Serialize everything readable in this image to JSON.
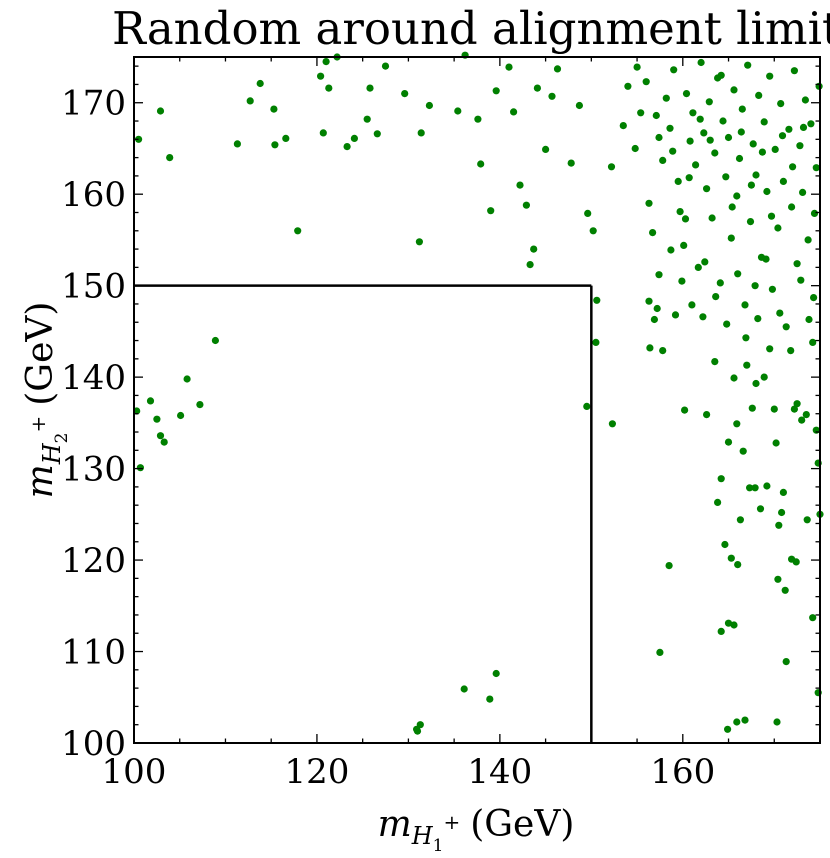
{
  "chart_data": {
    "type": "scatter",
    "title": "Random around alignment limit",
    "xlabel": {
      "symbol": "m",
      "sub": "H",
      "subsub": "1",
      "sup": "+",
      "unit": "(GeV)"
    },
    "ylabel": {
      "symbol": "m",
      "sub": "H",
      "subsub": "2",
      "sup": "+",
      "unit": "(GeV)"
    },
    "xlim": [
      100,
      175
    ],
    "ylim": [
      100,
      175
    ],
    "x_ticks": [
      100,
      120,
      140,
      160
    ],
    "y_ticks": [
      100,
      110,
      120,
      130,
      140,
      150,
      160,
      170
    ],
    "grid": false,
    "marker_color": "#008000",
    "boundary": {
      "x_max": 150,
      "y_max": 150,
      "color": "#000000"
    },
    "points": [
      [
        100.3,
        136.3
      ],
      [
        100.7,
        130.1
      ],
      [
        101.8,
        137.4
      ],
      [
        102.5,
        135.4
      ],
      [
        102.9,
        133.6
      ],
      [
        103.3,
        132.9
      ],
      [
        105.1,
        135.8
      ],
      [
        105.8,
        139.8
      ],
      [
        107.2,
        137.0
      ],
      [
        108.9,
        144.0
      ],
      [
        100.5,
        166.0
      ],
      [
        102.9,
        169.1
      ],
      [
        103.9,
        164.0
      ],
      [
        111.3,
        165.5
      ],
      [
        112.7,
        170.2
      ],
      [
        113.8,
        172.1
      ],
      [
        115.3,
        169.3
      ],
      [
        115.4,
        165.4
      ],
      [
        116.6,
        166.1
      ],
      [
        117.9,
        156.0
      ],
      [
        120.4,
        172.9
      ],
      [
        120.7,
        166.7
      ],
      [
        121.0,
        174.5
      ],
      [
        121.3,
        171.6
      ],
      [
        122.2,
        175.0
      ],
      [
        123.3,
        165.2
      ],
      [
        124.1,
        166.1
      ],
      [
        125.5,
        168.2
      ],
      [
        125.8,
        171.6
      ],
      [
        126.6,
        166.6
      ],
      [
        127.5,
        174.0
      ],
      [
        129.6,
        171.0
      ],
      [
        131.2,
        154.8
      ],
      [
        131.4,
        166.7
      ],
      [
        132.3,
        169.7
      ],
      [
        135.4,
        169.1
      ],
      [
        136.2,
        175.2
      ],
      [
        137.6,
        168.2
      ],
      [
        137.9,
        163.3
      ],
      [
        139.0,
        158.2
      ],
      [
        139.6,
        171.3
      ],
      [
        141.0,
        173.9
      ],
      [
        141.5,
        169.0
      ],
      [
        142.2,
        161.0
      ],
      [
        142.9,
        158.8
      ],
      [
        143.3,
        152.3
      ],
      [
        143.7,
        154.0
      ],
      [
        144.1,
        171.6
      ],
      [
        145.0,
        164.9
      ],
      [
        145.7,
        170.7
      ],
      [
        146.3,
        173.7
      ],
      [
        147.8,
        163.4
      ],
      [
        148.7,
        169.7
      ],
      [
        149.6,
        157.9
      ],
      [
        150.2,
        156.0
      ],
      [
        150.6,
        148.4
      ],
      [
        150.5,
        143.8
      ],
      [
        149.5,
        136.8
      ],
      [
        152.3,
        134.9
      ],
      [
        136.1,
        105.9
      ],
      [
        138.9,
        104.8
      ],
      [
        139.6,
        107.6
      ],
      [
        130.9,
        101.5
      ],
      [
        131.3,
        102.0
      ],
      [
        131.0,
        101.3
      ],
      [
        156.3,
        148.3
      ],
      [
        156.4,
        143.2
      ],
      [
        156.9,
        146.3
      ],
      [
        157.2,
        147.5
      ],
      [
        157.8,
        142.9
      ],
      [
        159.2,
        146.8
      ],
      [
        160.2,
        136.4
      ],
      [
        162.6,
        135.9
      ],
      [
        163.8,
        126.3
      ],
      [
        164.2,
        128.9
      ],
      [
        164.6,
        121.7
      ],
      [
        165.3,
        120.2
      ],
      [
        165.0,
        132.9
      ],
      [
        165.9,
        134.9
      ],
      [
        166.6,
        131.9
      ],
      [
        166.3,
        124.4
      ],
      [
        166.0,
        119.5
      ],
      [
        167.3,
        127.9
      ],
      [
        167.9,
        127.9
      ],
      [
        168.5,
        125.6
      ],
      [
        169.2,
        128.1
      ],
      [
        170.2,
        132.8
      ],
      [
        170.5,
        123.8
      ],
      [
        171.0,
        127.4
      ],
      [
        171.9,
        120.1
      ],
      [
        172.5,
        137.1
      ],
      [
        173.0,
        135.3
      ],
      [
        173.6,
        124.4
      ],
      [
        174.8,
        130.6
      ],
      [
        175.0,
        125.0
      ],
      [
        174.6,
        134.2
      ],
      [
        158.5,
        119.4
      ],
      [
        157.5,
        109.9
      ],
      [
        164.2,
        112.2
      ],
      [
        165.0,
        113.1
      ],
      [
        165.6,
        112.9
      ],
      [
        165.9,
        102.3
      ],
      [
        166.8,
        102.5
      ],
      [
        164.9,
        101.5
      ],
      [
        170.3,
        102.3
      ],
      [
        171.3,
        108.9
      ],
      [
        174.2,
        113.7
      ],
      [
        174.8,
        105.5
      ],
      [
        167.0,
        141.3
      ],
      [
        167.6,
        136.6
      ],
      [
        168.9,
        140.0
      ],
      [
        170.0,
        136.5
      ],
      [
        170.8,
        125.2
      ],
      [
        171.2,
        116.7
      ],
      [
        170.4,
        117.9
      ],
      [
        172.2,
        136.5
      ],
      [
        173.5,
        135.9
      ],
      [
        172.4,
        119.8
      ],
      [
        152.2,
        163.0
      ],
      [
        153.5,
        167.5
      ],
      [
        154.0,
        171.8
      ],
      [
        154.8,
        165.0
      ],
      [
        155.4,
        168.9
      ],
      [
        156.0,
        172.3
      ],
      [
        156.3,
        159.0
      ],
      [
        156.7,
        155.8
      ],
      [
        157.4,
        166.2
      ],
      [
        157.8,
        163.7
      ],
      [
        158.2,
        170.5
      ],
      [
        158.6,
        167.2
      ],
      [
        159.0,
        173.6
      ],
      [
        159.5,
        161.4
      ],
      [
        159.7,
        158.1
      ],
      [
        160.1,
        154.4
      ],
      [
        160.4,
        171.0
      ],
      [
        160.8,
        165.8
      ],
      [
        161.1,
        168.9
      ],
      [
        161.4,
        163.2
      ],
      [
        161.7,
        152.0
      ],
      [
        162.0,
        174.4
      ],
      [
        162.3,
        166.7
      ],
      [
        162.6,
        160.6
      ],
      [
        162.9,
        170.1
      ],
      [
        163.2,
        157.4
      ],
      [
        163.5,
        164.5
      ],
      [
        163.8,
        172.7
      ],
      [
        164.1,
        150.3
      ],
      [
        164.4,
        168.0
      ],
      [
        164.7,
        161.9
      ],
      [
        165.0,
        166.2
      ],
      [
        165.3,
        155.2
      ],
      [
        165.6,
        171.4
      ],
      [
        165.9,
        159.8
      ],
      [
        166.2,
        163.9
      ],
      [
        166.5,
        169.3
      ],
      [
        166.8,
        147.9
      ],
      [
        167.1,
        174.1
      ],
      [
        167.4,
        157.0
      ],
      [
        167.7,
        165.5
      ],
      [
        168.0,
        162.1
      ],
      [
        168.3,
        170.8
      ],
      [
        168.6,
        153.1
      ],
      [
        168.9,
        167.9
      ],
      [
        169.2,
        160.3
      ],
      [
        169.5,
        172.9
      ],
      [
        169.8,
        149.6
      ],
      [
        170.1,
        164.9
      ],
      [
        170.4,
        156.3
      ],
      [
        170.7,
        169.9
      ],
      [
        171.0,
        161.4
      ],
      [
        171.3,
        145.5
      ],
      [
        171.6,
        167.1
      ],
      [
        171.9,
        158.6
      ],
      [
        172.2,
        173.5
      ],
      [
        172.5,
        152.4
      ],
      [
        172.8,
        165.3
      ],
      [
        173.1,
        160.2
      ],
      [
        173.4,
        170.3
      ],
      [
        173.7,
        155.0
      ],
      [
        174.0,
        167.7
      ],
      [
        174.3,
        148.7
      ],
      [
        174.6,
        162.9
      ],
      [
        174.9,
        171.8
      ],
      [
        155.0,
        173.9
      ],
      [
        157.1,
        168.6
      ],
      [
        158.9,
        164.7
      ],
      [
        160.7,
        161.8
      ],
      [
        161.9,
        168.2
      ],
      [
        163.0,
        165.9
      ],
      [
        164.2,
        173.0
      ],
      [
        165.4,
        158.6
      ],
      [
        166.4,
        166.8
      ],
      [
        167.5,
        161.0
      ],
      [
        168.7,
        164.6
      ],
      [
        169.7,
        157.6
      ],
      [
        170.9,
        166.4
      ],
      [
        172.0,
        163.0
      ],
      [
        173.2,
        167.3
      ],
      [
        174.4,
        157.9
      ],
      [
        160.3,
        157.3
      ],
      [
        162.4,
        152.6
      ],
      [
        164.8,
        145.8
      ],
      [
        166.9,
        144.3
      ],
      [
        168.2,
        146.4
      ],
      [
        169.5,
        143.1
      ],
      [
        171.8,
        142.9
      ],
      [
        173.8,
        146.3
      ],
      [
        163.5,
        141.7
      ],
      [
        165.6,
        139.9
      ],
      [
        168.0,
        139.3
      ],
      [
        157.4,
        151.2
      ],
      [
        158.7,
        153.9
      ],
      [
        159.9,
        150.5
      ],
      [
        161.0,
        147.9
      ],
      [
        162.2,
        146.6
      ],
      [
        163.6,
        148.8
      ],
      [
        166.0,
        151.3
      ],
      [
        167.9,
        150.0
      ],
      [
        169.1,
        152.9
      ],
      [
        170.6,
        147.0
      ],
      [
        172.9,
        150.6
      ],
      [
        174.2,
        143.8
      ]
    ]
  }
}
